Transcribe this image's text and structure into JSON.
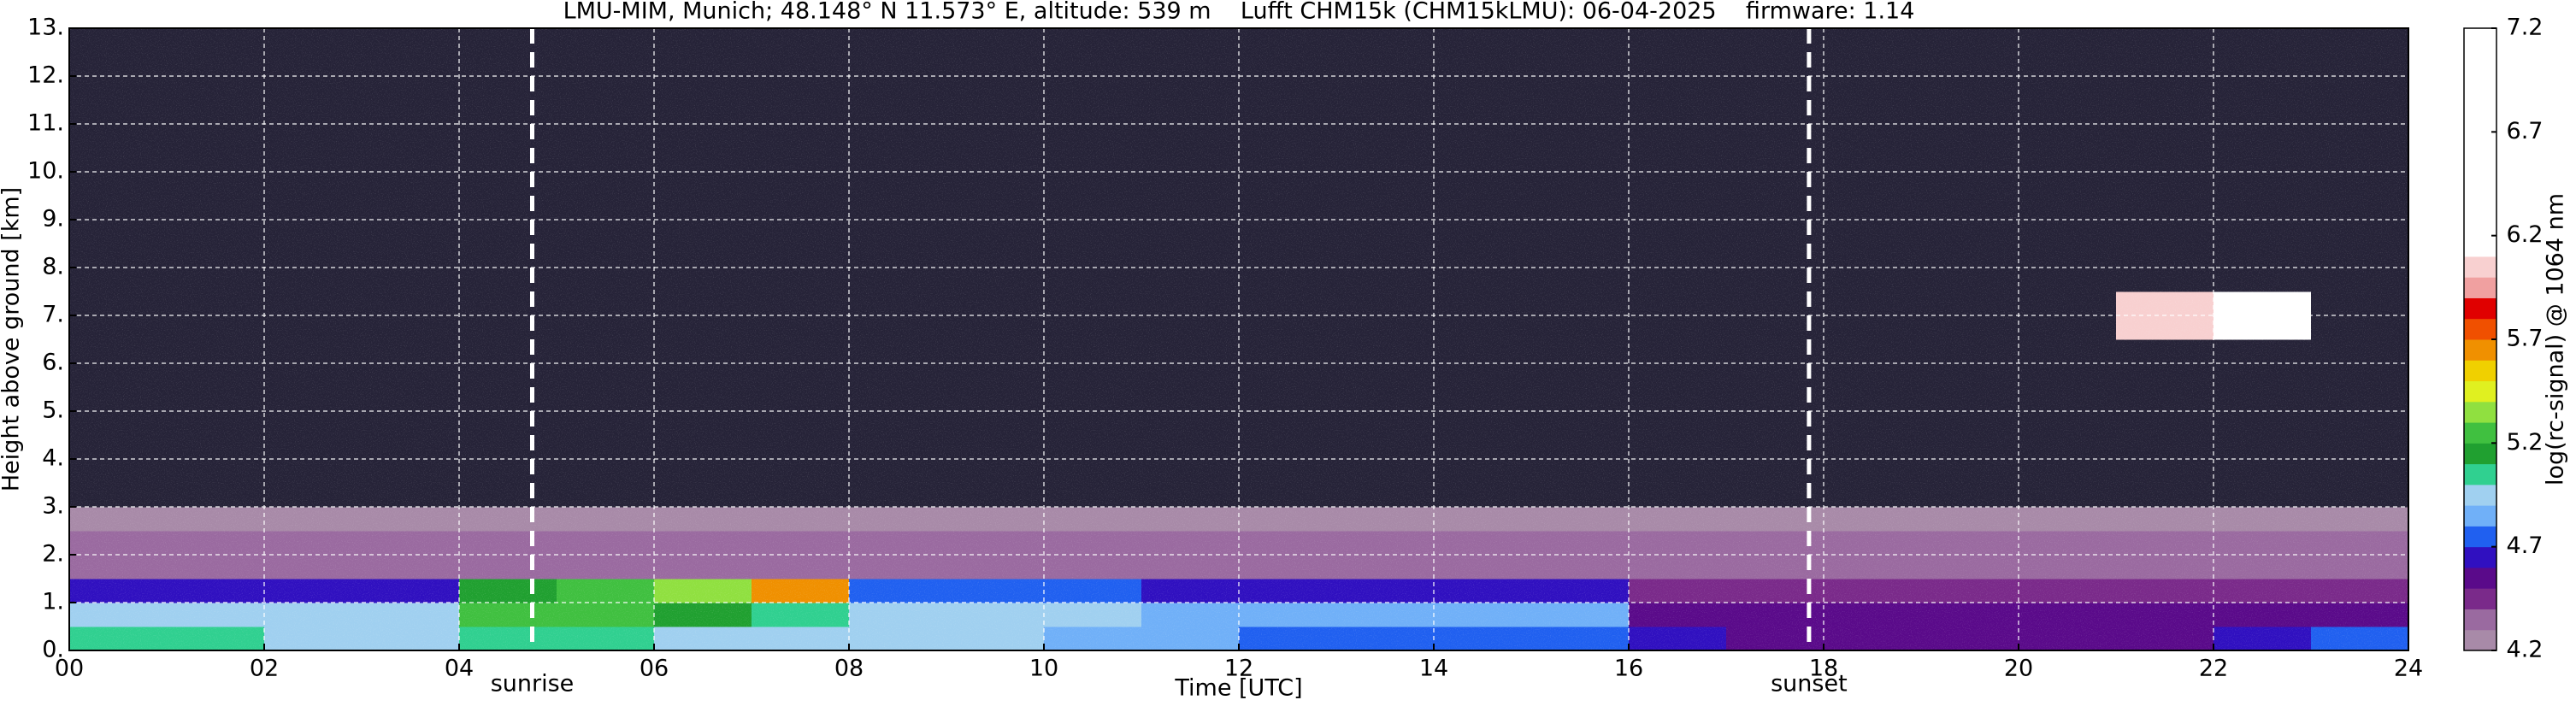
{
  "chart_data": {
    "type": "heatmap",
    "title": "LMU-MIM, Munich; 48.148° N 11.573° E, altitude: 539 m    Lufft CHM15k (CHM15kLMU): 06-04-2025    firmware: 1.14",
    "xlabel": "Time [UTC]",
    "ylabel": "Height above ground [km]",
    "colorbar_label": "log(rc-signal) @ 1064 nm",
    "xlim": [
      0,
      24
    ],
    "ylim": [
      0,
      13
    ],
    "xticks": [
      {
        "value": 0,
        "label": "00"
      },
      {
        "value": 2,
        "label": "02"
      },
      {
        "value": 4,
        "label": "04"
      },
      {
        "value": 6,
        "label": "06"
      },
      {
        "value": 8,
        "label": "08"
      },
      {
        "value": 10,
        "label": "10"
      },
      {
        "value": 12,
        "label": "12"
      },
      {
        "value": 14,
        "label": "14"
      },
      {
        "value": 16,
        "label": "16"
      },
      {
        "value": 18,
        "label": "18"
      },
      {
        "value": 20,
        "label": "20"
      },
      {
        "value": 22,
        "label": "22"
      },
      {
        "value": 24,
        "label": "24"
      }
    ],
    "yticks": [
      {
        "value": 0,
        "label": "0."
      },
      {
        "value": 1,
        "label": "1."
      },
      {
        "value": 2,
        "label": "2."
      },
      {
        "value": 3,
        "label": "3."
      },
      {
        "value": 4,
        "label": "4."
      },
      {
        "value": 5,
        "label": "5."
      },
      {
        "value": 6,
        "label": "6."
      },
      {
        "value": 7,
        "label": "7."
      },
      {
        "value": 8,
        "label": "8."
      },
      {
        "value": 9,
        "label": "9."
      },
      {
        "value": 10,
        "label": "10."
      },
      {
        "value": 11,
        "label": "11."
      },
      {
        "value": 12,
        "label": "12."
      },
      {
        "value": 13,
        "label": "13."
      }
    ],
    "grid": true,
    "x_edges": [
      0,
      1,
      2,
      3,
      4,
      5,
      6,
      7,
      8,
      9,
      10,
      11,
      12,
      13,
      14,
      15,
      16,
      17,
      18,
      19,
      20,
      21,
      22,
      23,
      24
    ],
    "y_edges": [
      0,
      0.5,
      1,
      1.5,
      2,
      2.5,
      3,
      4,
      6.5,
      7.5,
      13
    ],
    "values": [
      [
        5.0,
        5.0,
        4.95,
        4.95,
        5.0,
        5.0,
        4.95,
        4.9,
        4.9,
        4.9,
        4.85,
        4.8,
        4.75,
        4.75,
        4.75,
        4.75,
        4.6,
        4.55,
        4.55,
        4.55,
        4.55,
        4.55,
        4.6,
        4.7
      ],
      [
        4.95,
        4.95,
        4.95,
        4.95,
        5.2,
        5.2,
        5.1,
        5.0,
        4.9,
        4.9,
        4.9,
        4.8,
        4.8,
        4.8,
        4.8,
        4.8,
        4.55,
        4.55,
        4.55,
        4.55,
        4.55,
        4.55,
        4.55,
        4.55
      ],
      [
        4.6,
        4.6,
        4.6,
        4.6,
        5.1,
        5.2,
        5.3,
        5.6,
        4.7,
        4.7,
        4.7,
        4.6,
        4.6,
        4.6,
        4.6,
        4.6,
        4.45,
        4.45,
        4.45,
        4.45,
        4.45,
        4.45,
        4.45,
        4.45
      ],
      [
        4.35,
        4.35,
        4.35,
        4.3,
        4.3,
        4.3,
        4.3,
        4.35,
        4.35,
        4.35,
        4.35,
        4.35,
        4.35,
        4.35,
        4.35,
        4.35,
        4.35,
        4.35,
        4.35,
        4.35,
        4.35,
        4.35,
        4.35,
        4.35
      ],
      [
        4.35,
        4.35,
        4.3,
        4.3,
        4.3,
        4.3,
        4.3,
        4.3,
        4.3,
        4.3,
        4.3,
        4.3,
        4.3,
        4.3,
        4.3,
        4.3,
        4.35,
        4.35,
        4.35,
        4.35,
        4.35,
        4.35,
        4.35,
        4.35
      ],
      [
        4.25,
        4.25,
        4.25,
        4.2,
        4.2,
        4.2,
        4.2,
        4.2,
        4.2,
        4.2,
        4.2,
        4.2,
        4.2,
        4.2,
        4.2,
        4.2,
        4.2,
        4.2,
        4.2,
        4.2,
        4.2,
        4.2,
        4.2,
        4.2
      ],
      [
        4.0,
        4.0,
        4.0,
        4.0,
        4.0,
        4.0,
        4.0,
        4.0,
        4.0,
        4.0,
        4.0,
        4.0,
        4.0,
        4.0,
        4.0,
        4.0,
        4.0,
        4.0,
        4.0,
        4.0,
        4.0,
        4.0,
        4.0,
        4.0
      ],
      [
        4.0,
        4.0,
        4.0,
        4.0,
        4.0,
        4.0,
        4.0,
        4.0,
        4.0,
        4.0,
        4.0,
        4.0,
        4.0,
        4.0,
        4.0,
        4.0,
        4.0,
        4.0,
        4.0,
        4.0,
        4.0,
        4.0,
        4.0,
        4.0
      ],
      [
        4.0,
        4.0,
        4.0,
        4.0,
        4.0,
        4.0,
        4.0,
        4.0,
        4.0,
        4.0,
        4.0,
        4.0,
        4.0,
        4.0,
        4.0,
        4.0,
        4.0,
        4.0,
        4.0,
        4.0,
        4.0,
        6.0,
        6.3,
        4.0
      ],
      [
        4.0,
        4.0,
        4.0,
        4.0,
        4.0,
        4.0,
        4.0,
        4.0,
        4.0,
        4.0,
        4.0,
        4.0,
        4.0,
        4.0,
        4.0,
        4.0,
        4.0,
        4.0,
        4.0,
        4.0,
        4.0,
        4.0,
        4.0,
        4.0
      ]
    ],
    "clim": [
      4.2,
      7.2
    ],
    "cticks": [
      4.2,
      4.7,
      5.2,
      5.7,
      6.2,
      6.7,
      7.2
    ],
    "under_color": "#262338",
    "colorscale": [
      [
        4.2,
        "#a88aa8"
      ],
      [
        4.3,
        "#9a6aa0"
      ],
      [
        4.4,
        "#7a2a8a"
      ],
      [
        4.5,
        "#5a0a8a"
      ],
      [
        4.6,
        "#3010c0"
      ],
      [
        4.7,
        "#2060f0"
      ],
      [
        4.8,
        "#70b0f8"
      ],
      [
        4.9,
        "#a0d0f0"
      ],
      [
        5.0,
        "#30d090"
      ],
      [
        5.1,
        "#20a030"
      ],
      [
        5.2,
        "#40c040"
      ],
      [
        5.3,
        "#90e040"
      ],
      [
        5.4,
        "#e0f020"
      ],
      [
        5.5,
        "#f0d000"
      ],
      [
        5.6,
        "#f09000"
      ],
      [
        5.7,
        "#f05000"
      ],
      [
        5.8,
        "#e00000"
      ],
      [
        5.9,
        "#f0a0a0"
      ],
      [
        6.0,
        "#f8d0d0"
      ],
      [
        6.1,
        "#ffffff"
      ]
    ],
    "annotations": [
      {
        "text": "sunrise",
        "x": 4.75
      },
      {
        "text": "sunset",
        "x": 17.85
      }
    ]
  }
}
